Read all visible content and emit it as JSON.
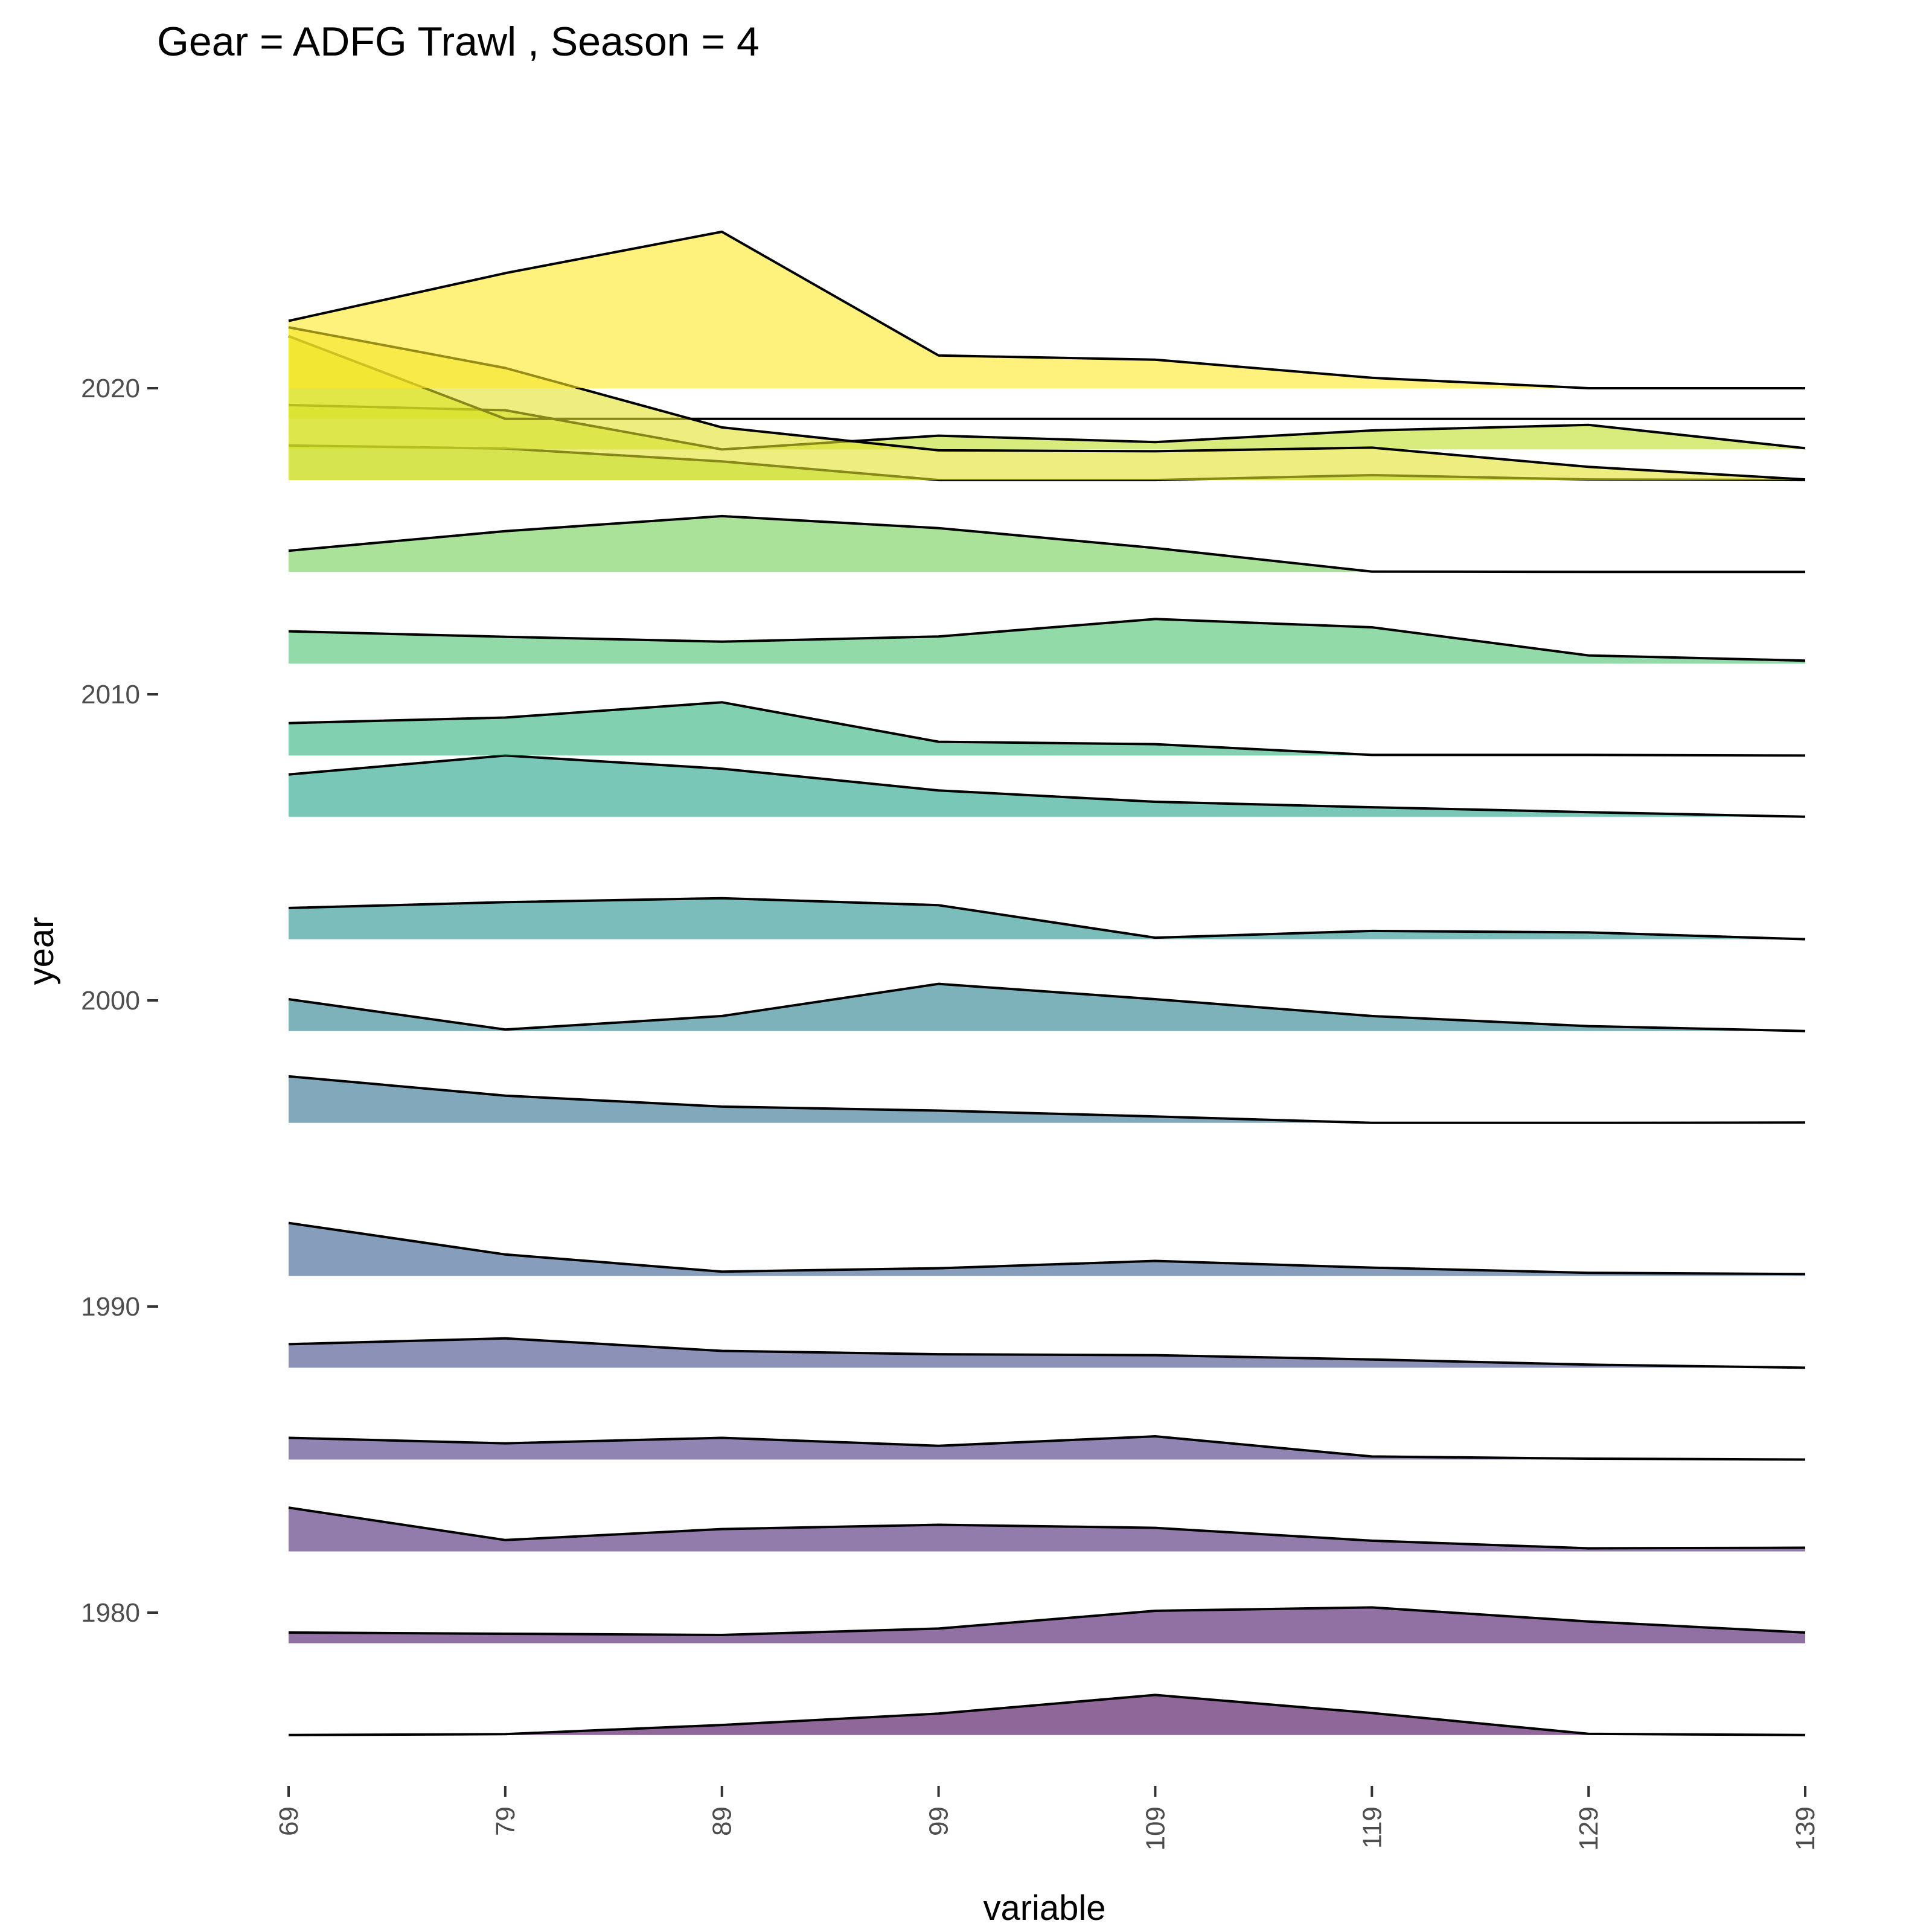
{
  "chart_data": {
    "type": "area",
    "subtype": "ridgeline",
    "title": "Gear = ADFG Trawl , Season = 4",
    "xlabel": "variable",
    "ylabel": "year",
    "x_categories": [
      "69",
      "79",
      "89",
      "99",
      "109",
      "119",
      "129",
      "139"
    ],
    "y_ticks": [
      1980,
      1990,
      2000,
      2010,
      2020
    ],
    "ylim": [
      1974.5,
      2031
    ],
    "grid": false,
    "legend": "none",
    "fill_alpha": 0.6,
    "colormap": "viridis",
    "ridge_height_years": [
      0,
      6.5
    ],
    "series": [
      {
        "year": 1976,
        "color": "#440154",
        "values": [
          0.0,
          0.03,
          0.33,
          0.7,
          1.31,
          0.72,
          0.04,
          0.0
        ]
      },
      {
        "year": 1979,
        "color": "#471365",
        "values": [
          0.35,
          0.31,
          0.27,
          0.48,
          1.06,
          1.17,
          0.71,
          0.35
        ]
      },
      {
        "year": 1982,
        "color": "#482475",
        "values": [
          1.43,
          0.37,
          0.73,
          0.87,
          0.77,
          0.35,
          0.1,
          0.12
        ]
      },
      {
        "year": 1985,
        "color": "#46337f",
        "values": [
          0.71,
          0.53,
          0.71,
          0.45,
          0.76,
          0.1,
          0.03,
          0.0
        ]
      },
      {
        "year": 1988,
        "color": "#3f4788",
        "values": [
          0.77,
          0.96,
          0.55,
          0.44,
          0.41,
          0.27,
          0.1,
          0.0
        ]
      },
      {
        "year": 1991,
        "color": "#365d8d",
        "values": [
          1.73,
          0.7,
          0.14,
          0.25,
          0.49,
          0.27,
          0.1,
          0.06
        ]
      },
      {
        "year": 1996,
        "color": "#2e6e8e",
        "values": [
          1.52,
          0.89,
          0.53,
          0.4,
          0.21,
          0.0,
          0.0,
          0.01
        ]
      },
      {
        "year": 1999,
        "color": "#277f8e",
        "values": [
          1.04,
          0.05,
          0.49,
          1.54,
          1.04,
          0.49,
          0.16,
          0.0
        ]
      },
      {
        "year": 2002,
        "color": "#21918c",
        "values": [
          1.02,
          1.21,
          1.34,
          1.11,
          0.05,
          0.27,
          0.22,
          0.0
        ]
      },
      {
        "year": 2006,
        "color": "#1fa187",
        "values": [
          1.38,
          2.0,
          1.57,
          0.86,
          0.49,
          0.31,
          0.15,
          0.0
        ]
      },
      {
        "year": 2008,
        "color": "#2db27d",
        "values": [
          1.06,
          1.24,
          1.74,
          0.45,
          0.37,
          0.02,
          0.02,
          0.0
        ]
      },
      {
        "year": 2011,
        "color": "#4ac16d",
        "values": [
          1.06,
          0.88,
          0.72,
          0.89,
          1.46,
          1.19,
          0.27,
          0.1
        ]
      },
      {
        "year": 2014,
        "color": "#71cf57",
        "values": [
          0.69,
          1.33,
          1.82,
          1.43,
          0.78,
          0.01,
          0.0,
          0.0
        ]
      },
      {
        "year": 2017,
        "color": "#a0da39",
        "values": [
          1.13,
          1.03,
          0.61,
          0.0,
          0.0,
          0.16,
          0.02,
          0.0
        ]
      },
      {
        "year": 2018,
        "color": "#bddf26",
        "values": [
          1.45,
          1.28,
          0.0,
          0.45,
          0.24,
          0.62,
          0.8,
          0.04
        ]
      },
      {
        "year": 2019,
        "color": "#d0e11c",
        "values": [
          2.7,
          0.0,
          0.0,
          0.0,
          0.0,
          0.0,
          0.0,
          0.0
        ]
      },
      {
        "year": 2017,
        "color": "#e1e329",
        "values": [
          4.99,
          3.66,
          1.72,
          0.97,
          0.94,
          1.06,
          0.43,
          0.02
        ]
      },
      {
        "year": 2020,
        "color": "#fde725",
        "values": [
          2.2,
          3.76,
          5.11,
          1.07,
          0.93,
          0.34,
          0.0,
          0.0
        ]
      }
    ]
  }
}
